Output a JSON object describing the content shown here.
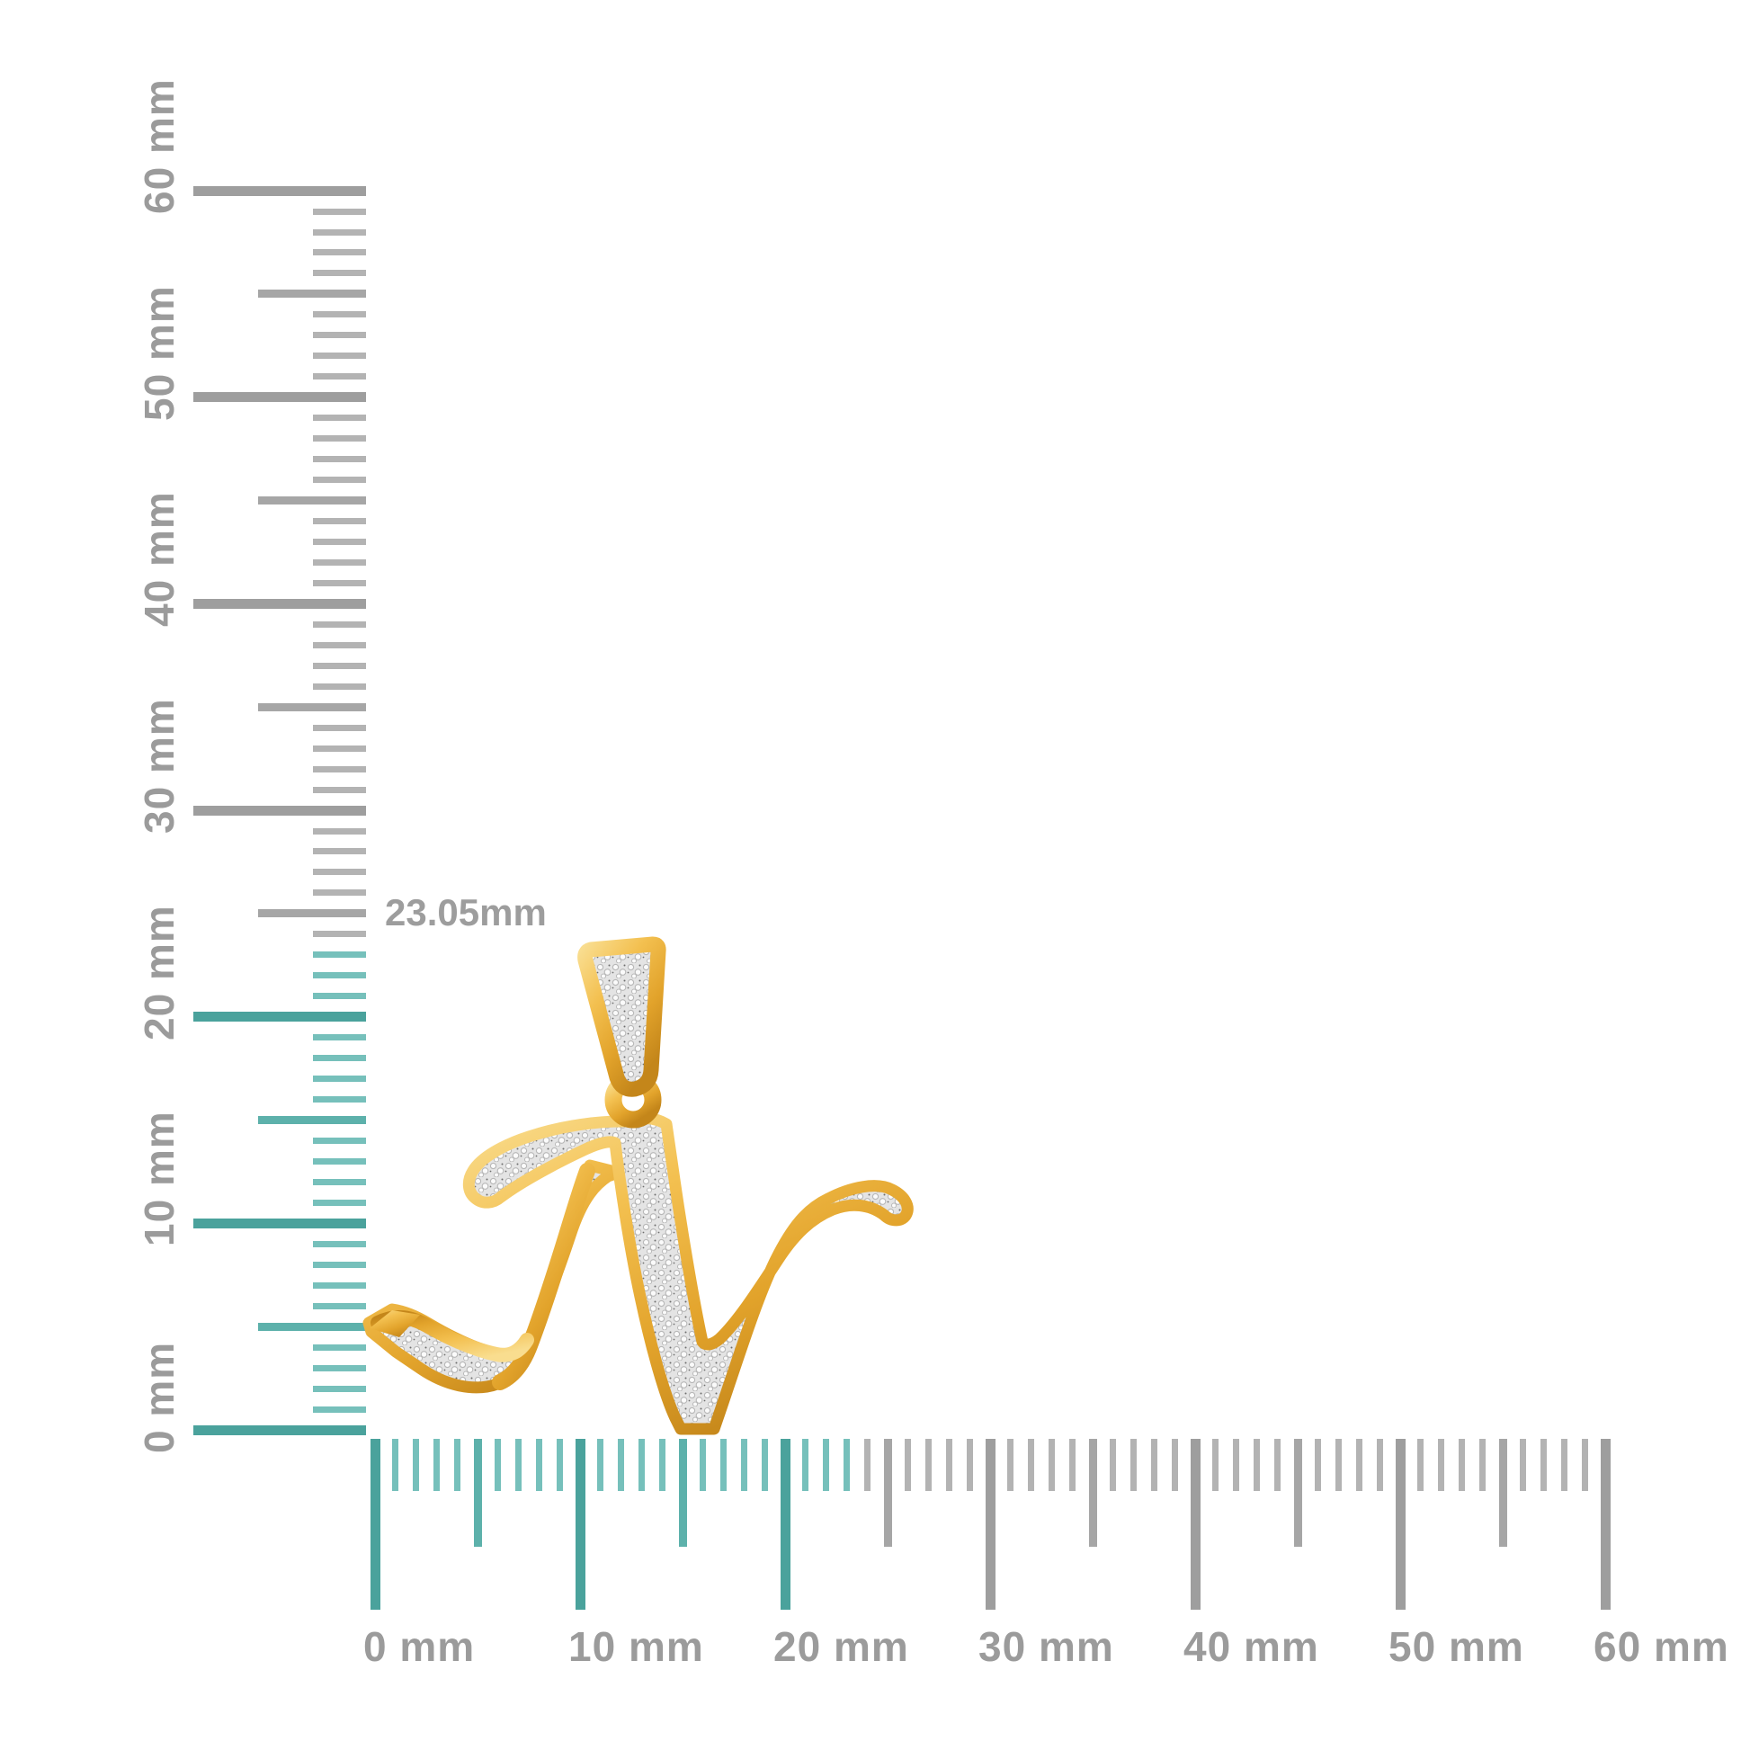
{
  "page": {
    "background_color": "#ffffff",
    "content_type": "jewelry product photo with millimeter size-reference rulers"
  },
  "measurement": {
    "label": "23.05mm",
    "color": "#9d9d9d"
  },
  "rulers": {
    "unit": "mm",
    "vertical": {
      "min_mm": 0,
      "max_mm": 60,
      "major_step_mm": 10,
      "medium_step_mm": 5,
      "highlight_until_mm": 23,
      "labels": [
        "0 mm",
        "10 mm",
        "20 mm",
        "30 mm",
        "40 mm",
        "50 mm",
        "60 mm"
      ],
      "colors": {
        "teal_major": "#4aa29c",
        "teal_medium": "#5db1ab",
        "teal_minor": "#76c0bb",
        "gray_major": "#9e9e9e",
        "gray_medium": "#a6a6a6",
        "gray_minor": "#b3b3b3",
        "label": "#9b9b9b"
      }
    },
    "horizontal": {
      "min_mm": 0,
      "max_mm": 60,
      "major_step_mm": 10,
      "medium_step_mm": 5,
      "highlight_until_mm": 23,
      "labels": [
        "0 mm",
        "10 mm",
        "20 mm",
        "30 mm",
        "40 mm",
        "50 mm",
        "60 mm"
      ],
      "colors": {
        "teal_major": "#4aa29c",
        "teal_medium": "#5db1ab",
        "teal_minor": "#76c0bb",
        "gray_major": "#9e9e9e",
        "gray_medium": "#a6a6a6",
        "gray_minor": "#b3b3b3",
        "label": "#9b9b9b"
      }
    }
  },
  "pendant": {
    "description": "Yellow gold cursive script initial letter N pendant, pave set with round diamonds, with a diamond-set tapered bail and gold loop",
    "letter": "N",
    "colors": {
      "gold_gradient": [
        "#f9dd8f",
        "#f3c050",
        "#e2a32b",
        "#c4861a"
      ],
      "pave_base": "#e4e4e4",
      "pave_bead": "#fbfbfb",
      "pave_bead_edge": "#b8b8b8",
      "pave_dot": "#6e6e6e"
    }
  }
}
